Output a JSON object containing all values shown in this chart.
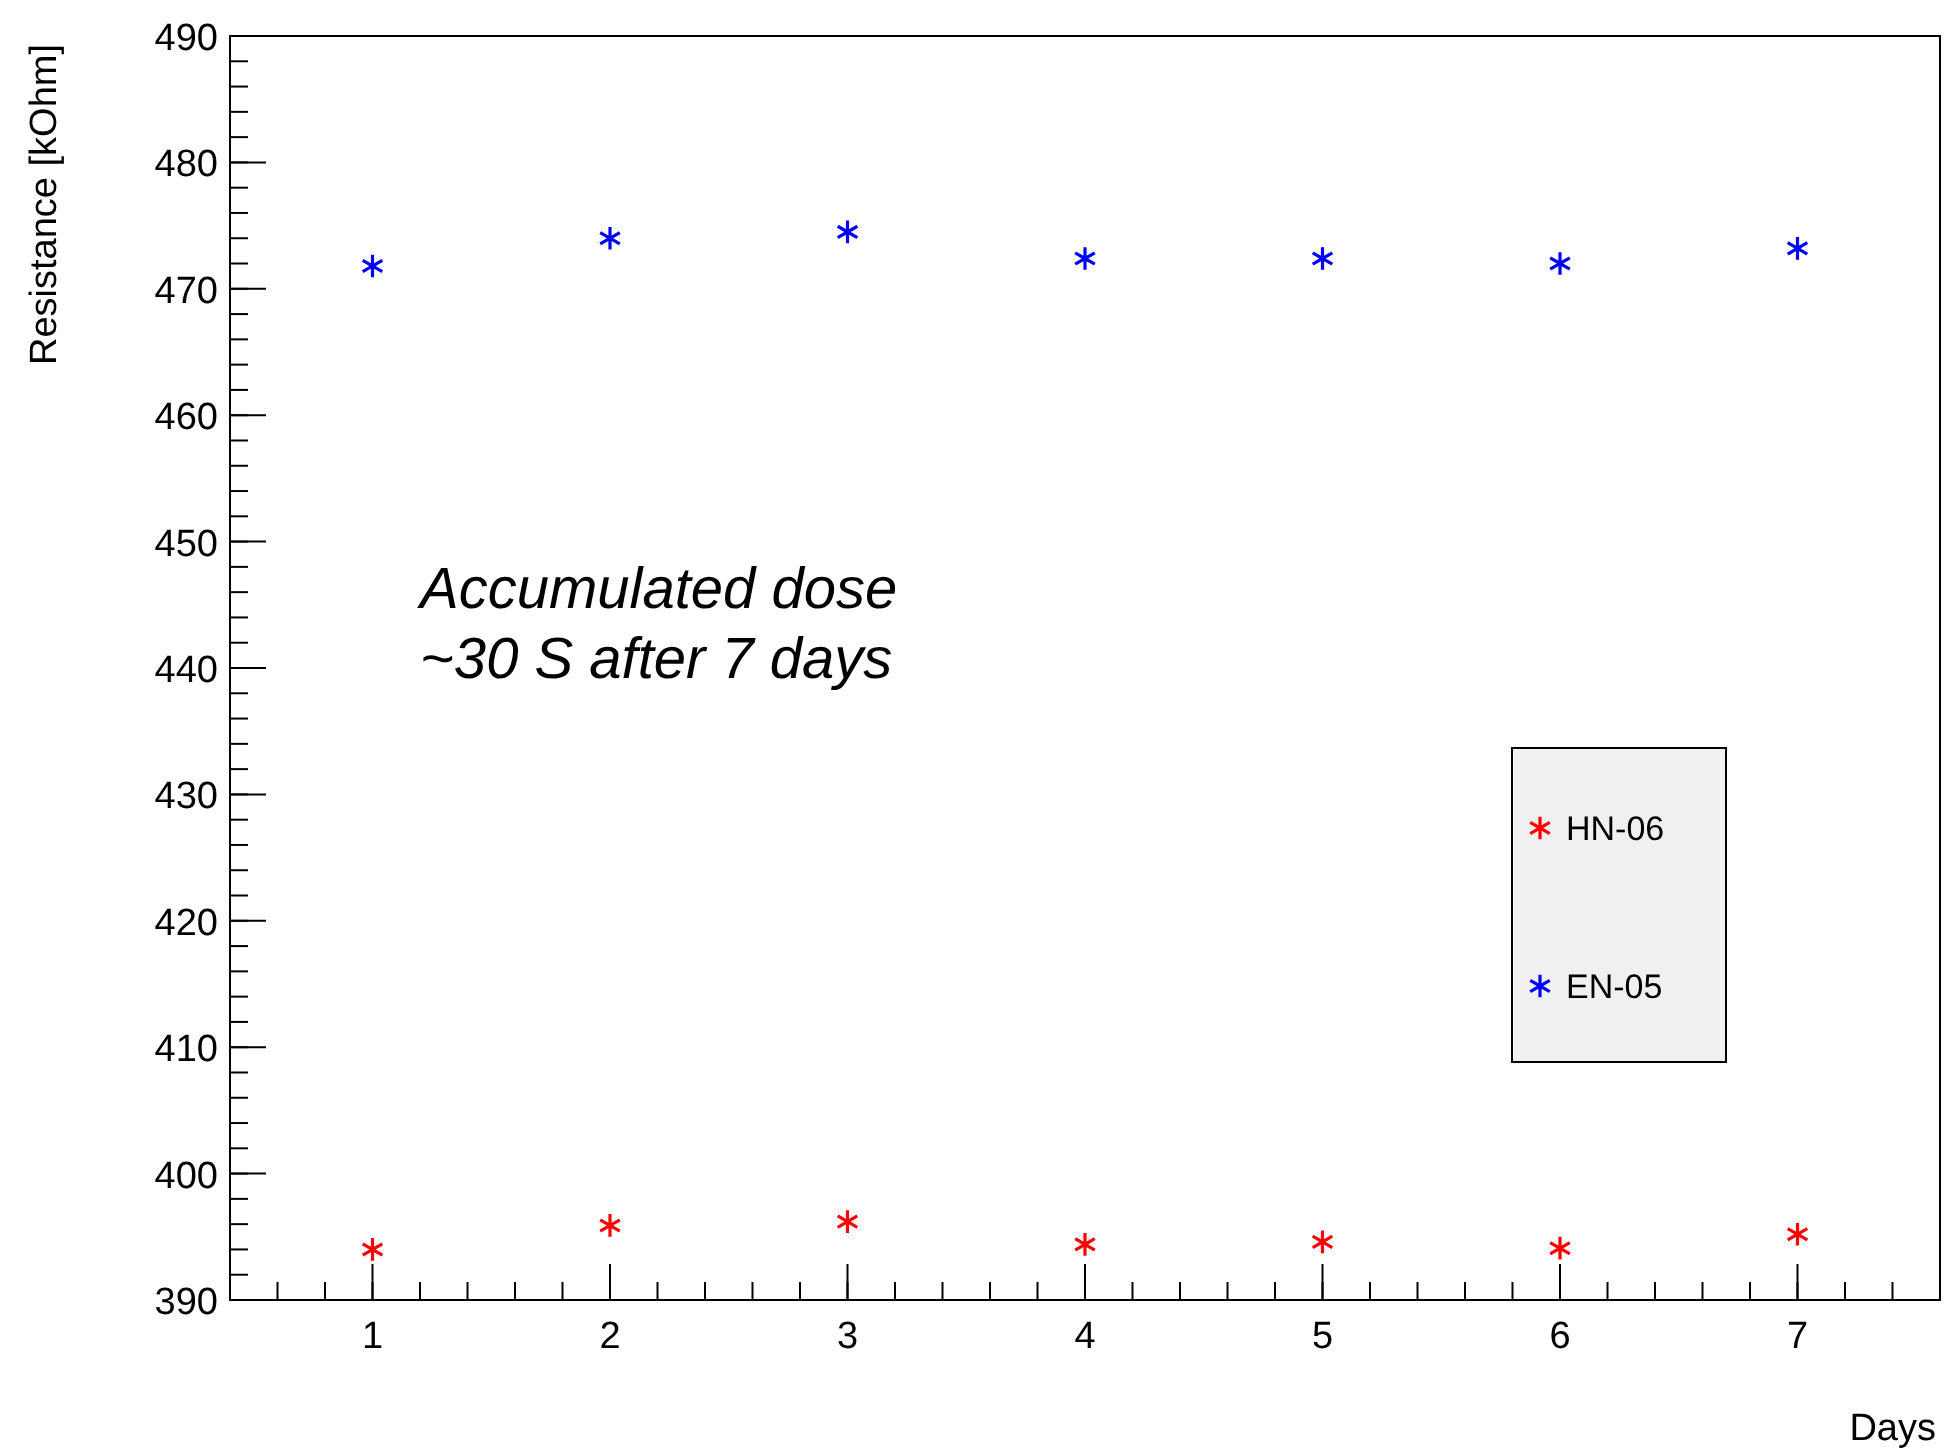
{
  "chart_data": {
    "type": "scatter",
    "xlabel": "Days",
    "ylabel": "Resistance [kOhm]",
    "x": [
      1,
      2,
      3,
      4,
      5,
      6,
      7
    ],
    "series": [
      {
        "name": "HN-06",
        "color": "#ff0000",
        "values": [
          394.0,
          395.9,
          396.2,
          394.4,
          394.6,
          394.1,
          395.2
        ]
      },
      {
        "name": "EN-05",
        "color": "#0000ff",
        "values": [
          471.8,
          474.0,
          474.5,
          472.4,
          472.4,
          472.0,
          473.2
        ]
      }
    ],
    "xlim": [
      0.4,
      7.6
    ],
    "xticks": [
      1,
      2,
      3,
      4,
      5,
      6,
      7
    ],
    "ylim": [
      390,
      490
    ],
    "yticks": [
      390,
      400,
      410,
      420,
      430,
      440,
      450,
      460,
      470,
      480,
      490
    ],
    "marker": "cross",
    "grid": false,
    "legend": "right",
    "annotations": [
      "Accumulated dose\n~30 S after 7 days"
    ]
  }
}
